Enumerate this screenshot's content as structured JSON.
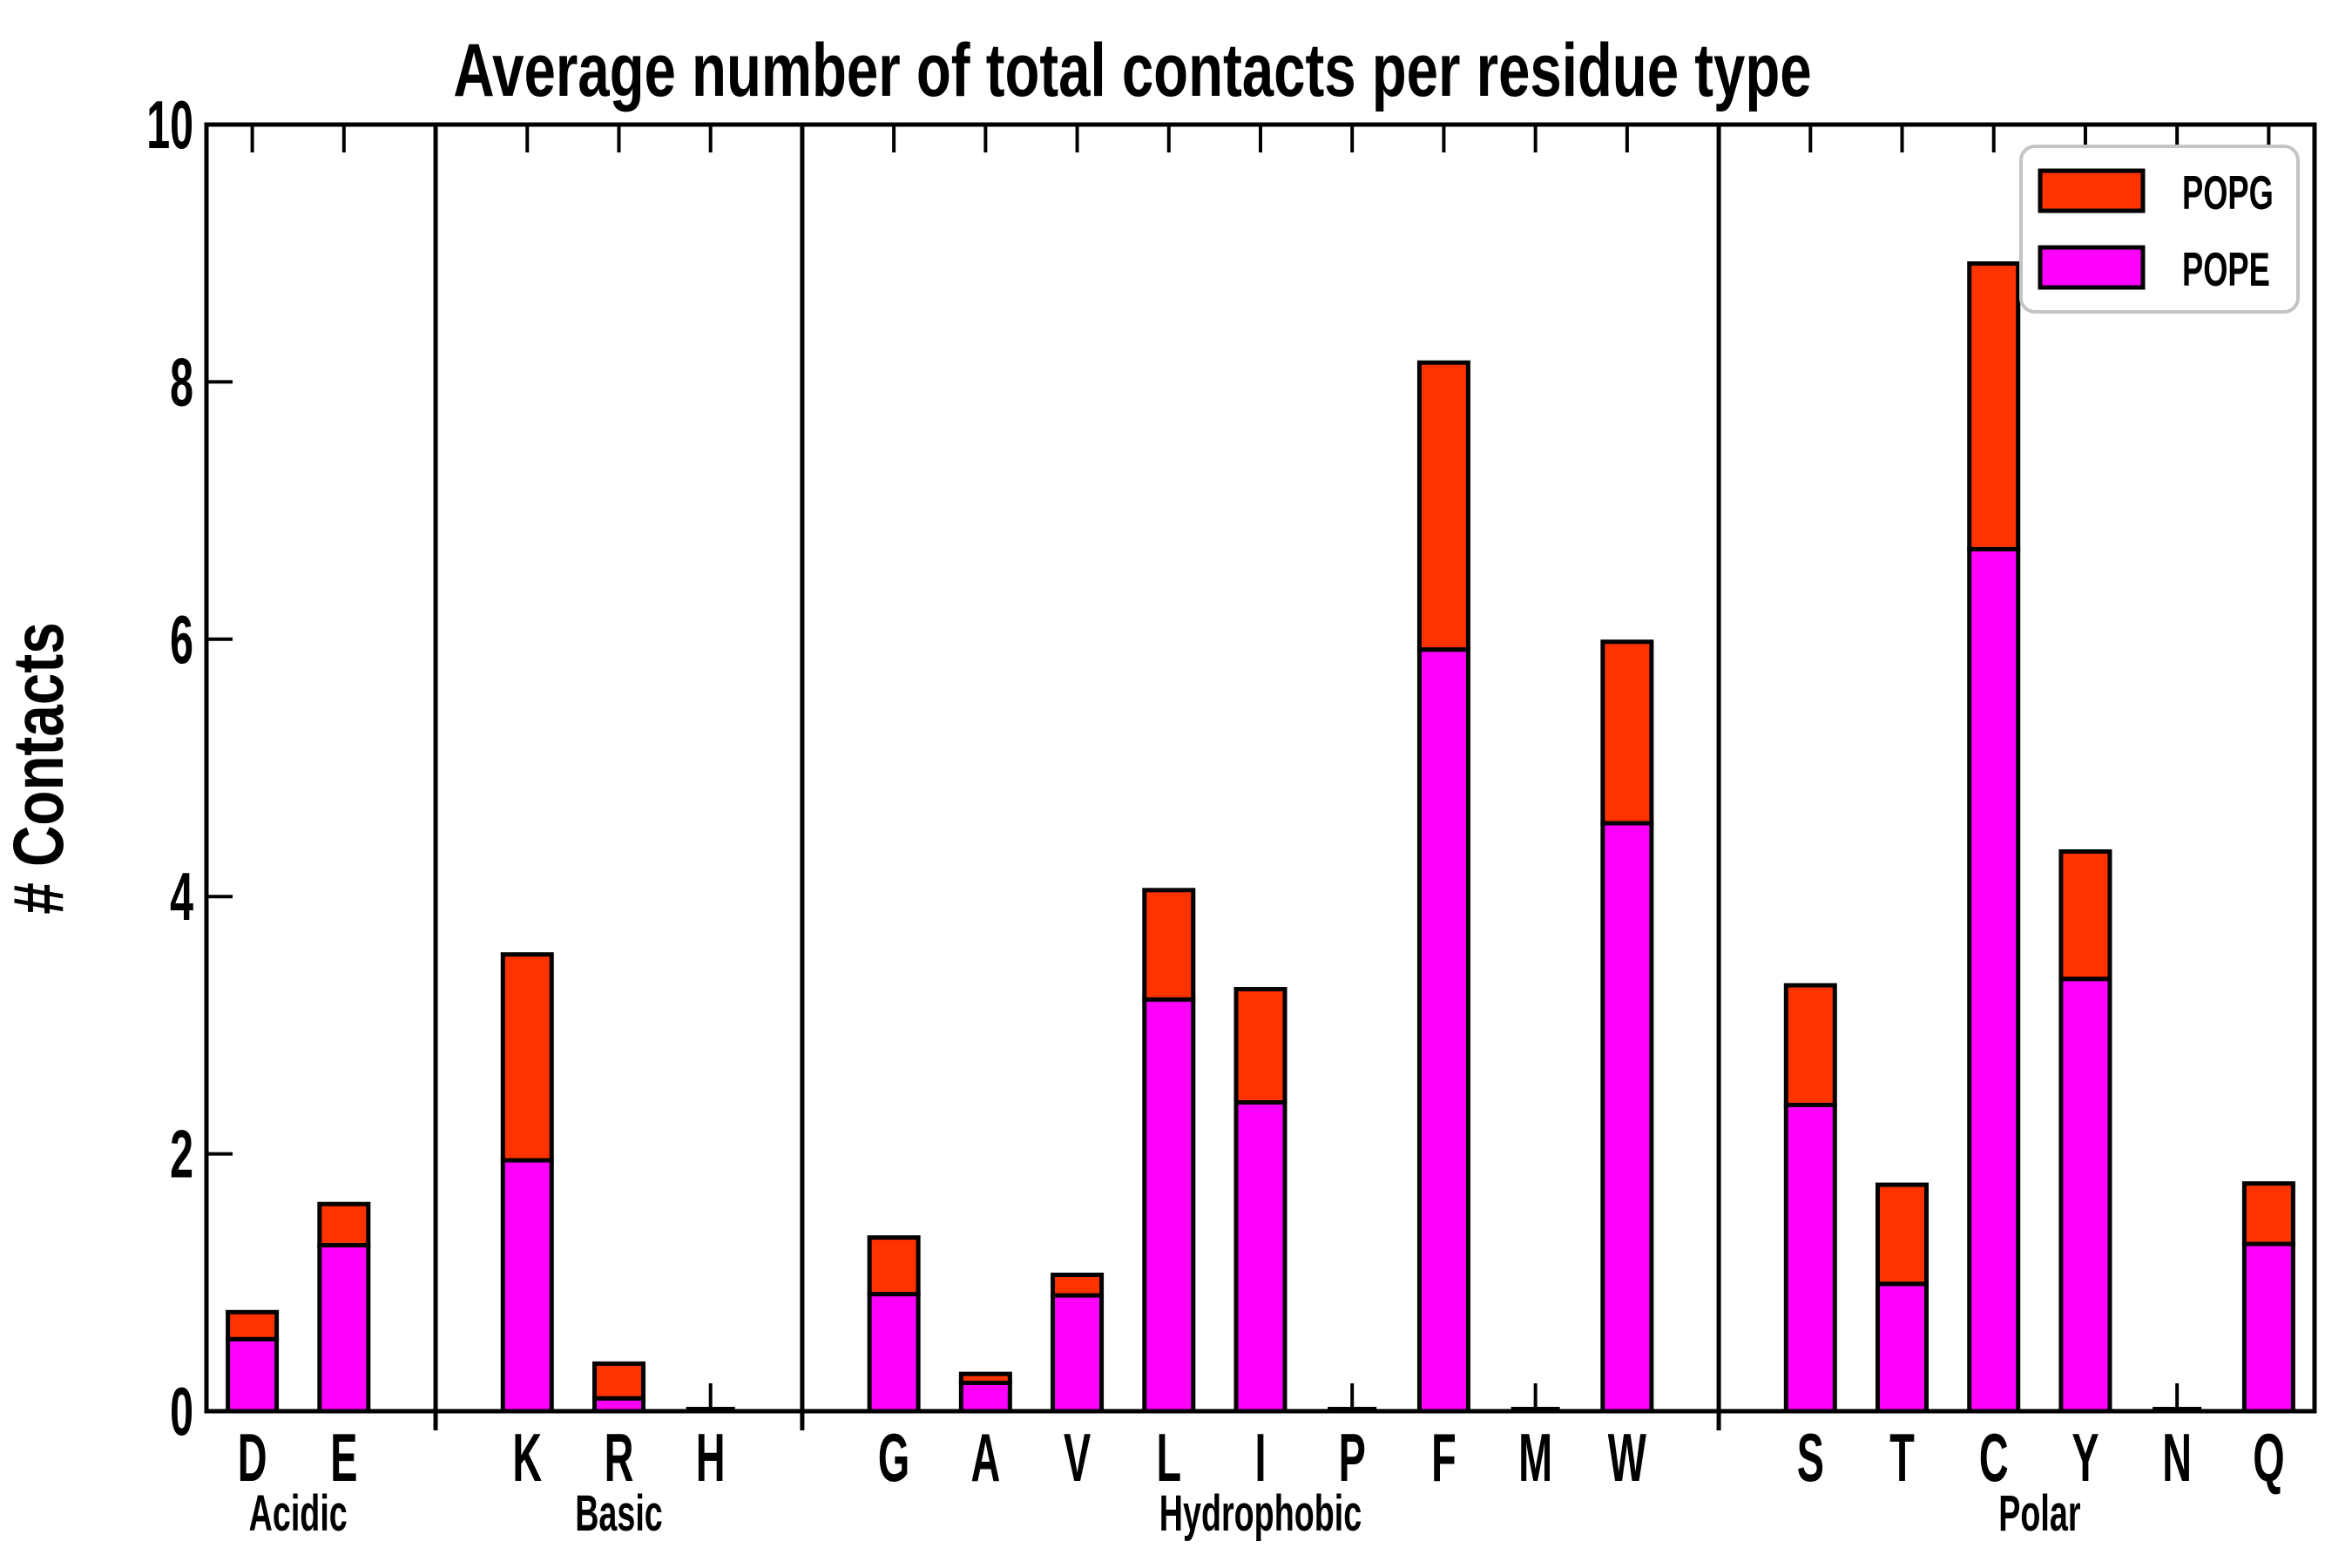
{
  "title": "Average number of total contacts per residue type",
  "ylabel": "# Contacts",
  "legend": {
    "entries": [
      {
        "label": "POPG",
        "color": "#ff3300"
      },
      {
        "label": "POPE",
        "color": "#ff00ff"
      }
    ]
  },
  "chart_data": {
    "type": "bar",
    "subtype": "stacked-vertical",
    "title": "Average number of total contacts per residue type",
    "xlabel": "",
    "ylabel": "# Contacts",
    "ylim": [
      0,
      10
    ],
    "yticks": [
      0,
      2,
      4,
      6,
      8,
      10
    ],
    "grid": false,
    "legend_position": "upper-right",
    "bar_fill_colors": {
      "POPG": "#ff3300",
      "POPE": "#ff00ff"
    },
    "bar_edge_color": "#000000",
    "groups": [
      {
        "name": "Acidic",
        "categories": [
          "D",
          "E"
        ]
      },
      {
        "name": "Basic",
        "categories": [
          "K",
          "R",
          "H"
        ]
      },
      {
        "name": "Hydrophobic",
        "categories": [
          "G",
          "A",
          "V",
          "L",
          "I",
          "P",
          "F",
          "M",
          "W"
        ]
      },
      {
        "name": "Polar",
        "categories": [
          "S",
          "T",
          "C",
          "Y",
          "N",
          "Q"
        ]
      }
    ],
    "categories": [
      "D",
      "E",
      "K",
      "R",
      "H",
      "G",
      "A",
      "V",
      "L",
      "I",
      "P",
      "F",
      "M",
      "W",
      "S",
      "T",
      "C",
      "Y",
      "N",
      "Q"
    ],
    "series": [
      {
        "name": "POPE",
        "color": "#ff00ff",
        "values": [
          0.56,
          1.29,
          1.95,
          0.1,
          0.01,
          0.91,
          0.22,
          0.9,
          3.2,
          2.4,
          0.01,
          5.92,
          0.01,
          4.57,
          2.38,
          0.99,
          6.7,
          3.36,
          0.01,
          1.3
        ]
      },
      {
        "name": "POPG",
        "color": "#ff3300",
        "values": [
          0.21,
          0.32,
          1.6,
          0.27,
          0.01,
          0.44,
          0.07,
          0.16,
          0.85,
          0.88,
          0.01,
          2.23,
          0.01,
          1.41,
          0.93,
          0.77,
          2.22,
          0.99,
          0.01,
          0.47
        ]
      }
    ],
    "stacked_totals": [
      0.77,
      1.61,
      3.55,
      0.37,
      0.02,
      1.35,
      0.29,
      1.06,
      4.05,
      3.28,
      0.02,
      8.15,
      0.02,
      5.98,
      3.31,
      1.76,
      8.92,
      4.35,
      0.02,
      1.77
    ]
  }
}
